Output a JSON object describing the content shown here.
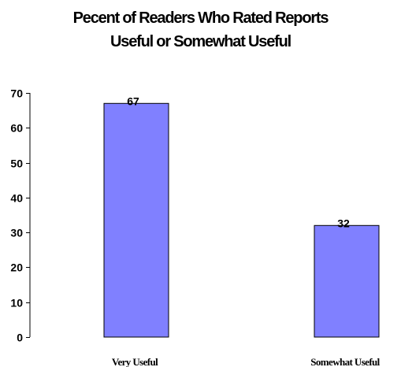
{
  "chart_data": {
    "type": "bar",
    "title_lines": [
      "Pecent of Readers Who Rated Reports",
      "Useful or Somewhat Useful"
    ],
    "categories": [
      "Very Useful",
      "Somewhat Useful"
    ],
    "values": [
      67,
      32
    ],
    "data_labels": [
      "67",
      "32"
    ],
    "xlabel": "",
    "ylabel": "",
    "ylim": [
      0,
      70
    ],
    "yticks": [
      "0",
      "10",
      "20",
      "30",
      "40",
      "50",
      "60",
      "70"
    ],
    "grid": false,
    "legend": "none",
    "bar_color": "#8080ff",
    "bar_edge_color": "#000000"
  }
}
